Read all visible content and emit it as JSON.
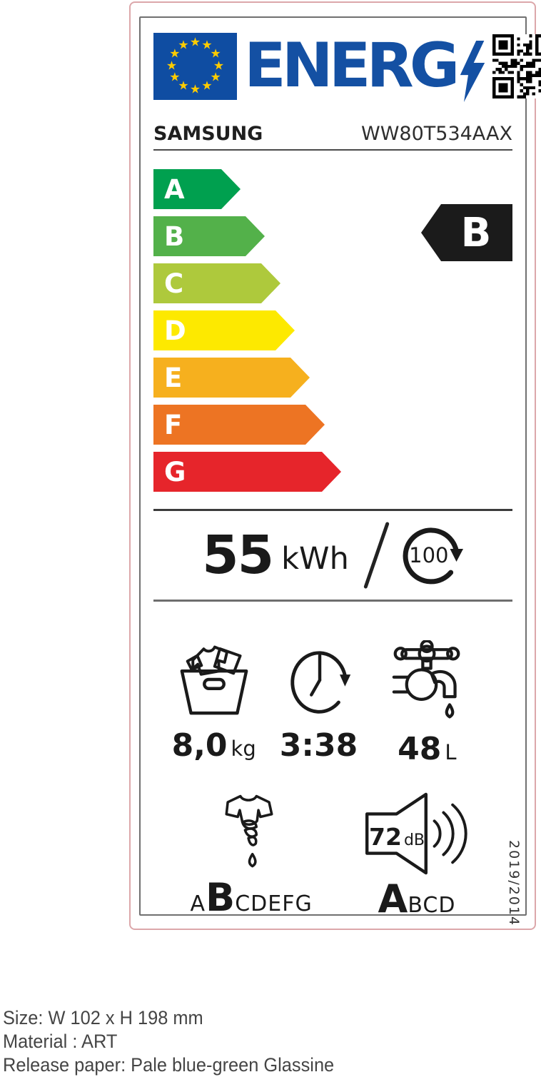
{
  "header": {
    "logo_text": "ENERG",
    "eu_flag_icon": "eu-flag",
    "lightning_icon": "lightning-bolt",
    "qr_icon": "qr-code"
  },
  "brand": {
    "name": "SAMSUNG",
    "model": "WW80T534AAX"
  },
  "scale": {
    "classes": [
      {
        "letter": "A",
        "color": "#00A04F"
      },
      {
        "letter": "B",
        "color": "#53B14A"
      },
      {
        "letter": "C",
        "color": "#AEC93C"
      },
      {
        "letter": "D",
        "color": "#FDE900"
      },
      {
        "letter": "E",
        "color": "#F6B01E"
      },
      {
        "letter": "F",
        "color": "#ED7423"
      },
      {
        "letter": "G",
        "color": "#E6252B"
      }
    ],
    "rating": {
      "letter": "B",
      "color": "#1B1B1B"
    }
  },
  "energy": {
    "value": "55",
    "unit": "kWh",
    "per_cycles": "100",
    "cycle_icon": "cycle-arrow"
  },
  "metrics": {
    "capacity": {
      "icon": "laundry-basket",
      "value": "8,0",
      "unit": "kg"
    },
    "duration": {
      "icon": "clock",
      "value": "3:38",
      "unit": ""
    },
    "water": {
      "icon": "water-tap",
      "value": "48",
      "unit": "L"
    }
  },
  "spin": {
    "icon": "spin-dry-shirt",
    "letters": [
      "A",
      "B",
      "C",
      "D",
      "E",
      "F",
      "G"
    ],
    "selected": "B"
  },
  "noise": {
    "icon": "speaker",
    "value": "72",
    "unit": "dB",
    "letters": [
      "A",
      "B",
      "C",
      "D"
    ],
    "selected": "A"
  },
  "regulation": "2019/2014",
  "footer": {
    "lines": [
      "Size: W 102 x H 198 mm",
      "Material : ART",
      "Release paper: Pale blue-green Glassine"
    ]
  },
  "colors": {
    "eu_blue": "#0F4DA2",
    "logo_blue": "#1450A3",
    "star_yellow": "#FFCC00",
    "outer_border_pink": "#DCA7AA",
    "inner_border_gray": "#707070"
  }
}
